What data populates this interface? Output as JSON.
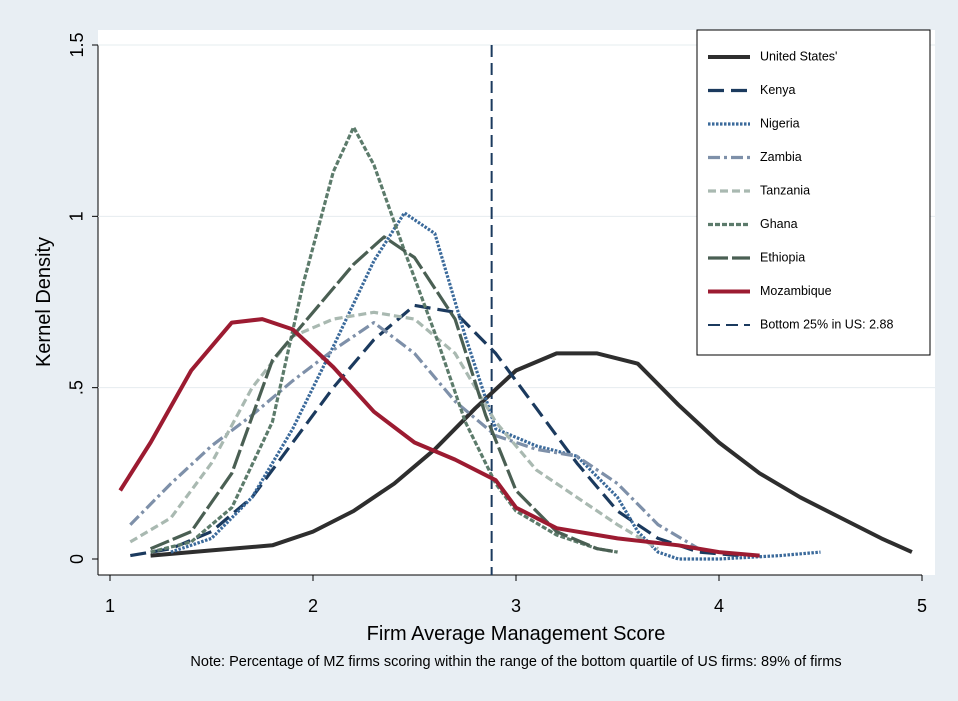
{
  "chart_data": {
    "type": "line",
    "xlabel": "Firm Average Management Score",
    "ylabel": "Kernel Density",
    "note": "Note: Percentage of MZ firms scoring within the range of the bottom quartile of US firms: 89% of firms",
    "xlim": [
      1,
      5
    ],
    "xticks": [
      1,
      2,
      3,
      4,
      5
    ],
    "ylim": [
      0,
      1.5
    ],
    "yticks": [
      0,
      {
        "value": 0.5,
        "label": ".5"
      },
      1,
      1.5
    ],
    "grid": true,
    "legend": "top-right",
    "series": [
      {
        "name": "United States'",
        "color": "#2e2e2e",
        "dash": "solid",
        "x": [
          1.2,
          1.5,
          1.8,
          2.0,
          2.2,
          2.4,
          2.6,
          2.8,
          3.0,
          3.2,
          3.4,
          3.6,
          3.8,
          4.0,
          4.2,
          4.4,
          4.6,
          4.8,
          4.95
        ],
        "values": [
          0.01,
          0.025,
          0.04,
          0.08,
          0.14,
          0.22,
          0.32,
          0.44,
          0.55,
          0.6,
          0.6,
          0.57,
          0.45,
          0.34,
          0.25,
          0.18,
          0.12,
          0.06,
          0.02
        ]
      },
      {
        "name": "Kenya",
        "color": "#1b3a5e",
        "dash": "longdash",
        "x": [
          1.1,
          1.3,
          1.5,
          1.7,
          1.9,
          2.1,
          2.3,
          2.5,
          2.7,
          2.9,
          3.1,
          3.3,
          3.5,
          3.7,
          3.9,
          4.1
        ],
        "values": [
          0.01,
          0.03,
          0.08,
          0.18,
          0.34,
          0.5,
          0.64,
          0.74,
          0.72,
          0.6,
          0.44,
          0.28,
          0.14,
          0.06,
          0.02,
          0.01
        ]
      },
      {
        "name": "Nigeria",
        "color": "#3b6a9b",
        "dash": "dot",
        "x": [
          1.3,
          1.5,
          1.7,
          1.9,
          2.1,
          2.3,
          2.45,
          2.6,
          2.75,
          2.9,
          3.1,
          3.3,
          3.5,
          3.6,
          3.7,
          3.8,
          4.0,
          4.3,
          4.5
        ],
        "values": [
          0.02,
          0.06,
          0.18,
          0.38,
          0.62,
          0.87,
          1.01,
          0.95,
          0.65,
          0.38,
          0.33,
          0.3,
          0.18,
          0.08,
          0.02,
          0.0,
          0.0,
          0.01,
          0.02
        ]
      },
      {
        "name": "Zambia",
        "color": "#7e90a9",
        "dash": "dashdot",
        "x": [
          1.1,
          1.3,
          1.5,
          1.7,
          1.9,
          2.1,
          2.3,
          2.5,
          2.7,
          2.9,
          3.1,
          3.3,
          3.5,
          3.7,
          3.9
        ],
        "values": [
          0.1,
          0.22,
          0.33,
          0.42,
          0.52,
          0.61,
          0.69,
          0.6,
          0.46,
          0.36,
          0.32,
          0.3,
          0.22,
          0.1,
          0.03
        ]
      },
      {
        "name": "Tanzania",
        "color": "#a9b9b1",
        "dash": "shortdash",
        "x": [
          1.1,
          1.3,
          1.5,
          1.7,
          1.9,
          2.1,
          2.3,
          2.5,
          2.7,
          2.9,
          3.1,
          3.3,
          3.5,
          3.7
        ],
        "values": [
          0.05,
          0.12,
          0.28,
          0.5,
          0.65,
          0.7,
          0.72,
          0.7,
          0.6,
          0.4,
          0.26,
          0.18,
          0.1,
          0.03
        ]
      },
      {
        "name": "Ghana",
        "color": "#5c7b6b",
        "dash": "shortdot",
        "x": [
          1.2,
          1.4,
          1.6,
          1.8,
          1.95,
          2.1,
          2.2,
          2.3,
          2.45,
          2.6,
          2.75,
          2.9,
          3.0,
          3.2,
          3.4,
          3.5
        ],
        "values": [
          0.02,
          0.05,
          0.15,
          0.4,
          0.8,
          1.13,
          1.26,
          1.15,
          0.9,
          0.66,
          0.4,
          0.22,
          0.14,
          0.07,
          0.03,
          0.02
        ]
      },
      {
        "name": "Ethiopia",
        "color": "#4a5f53",
        "dash": "longdash2",
        "x": [
          1.2,
          1.4,
          1.6,
          1.8,
          2.0,
          2.2,
          2.35,
          2.5,
          2.7,
          2.85,
          3.0,
          3.2,
          3.4,
          3.5
        ],
        "values": [
          0.03,
          0.08,
          0.25,
          0.58,
          0.72,
          0.86,
          0.94,
          0.88,
          0.7,
          0.42,
          0.2,
          0.08,
          0.03,
          0.02
        ]
      },
      {
        "name": "Mozambique",
        "color": "#9c1b31",
        "dash": "solid",
        "x": [
          1.05,
          1.2,
          1.4,
          1.6,
          1.75,
          1.9,
          2.1,
          2.3,
          2.5,
          2.7,
          2.9,
          3.0,
          3.2,
          3.5,
          3.8,
          4.0,
          4.2
        ],
        "values": [
          0.2,
          0.34,
          0.55,
          0.69,
          0.7,
          0.67,
          0.56,
          0.43,
          0.34,
          0.29,
          0.23,
          0.15,
          0.09,
          0.06,
          0.04,
          0.02,
          0.01
        ]
      }
    ],
    "reference_line": {
      "name": "Bottom 25% in US: 2.88",
      "x": 2.88,
      "color": "#1b3a5e"
    }
  }
}
